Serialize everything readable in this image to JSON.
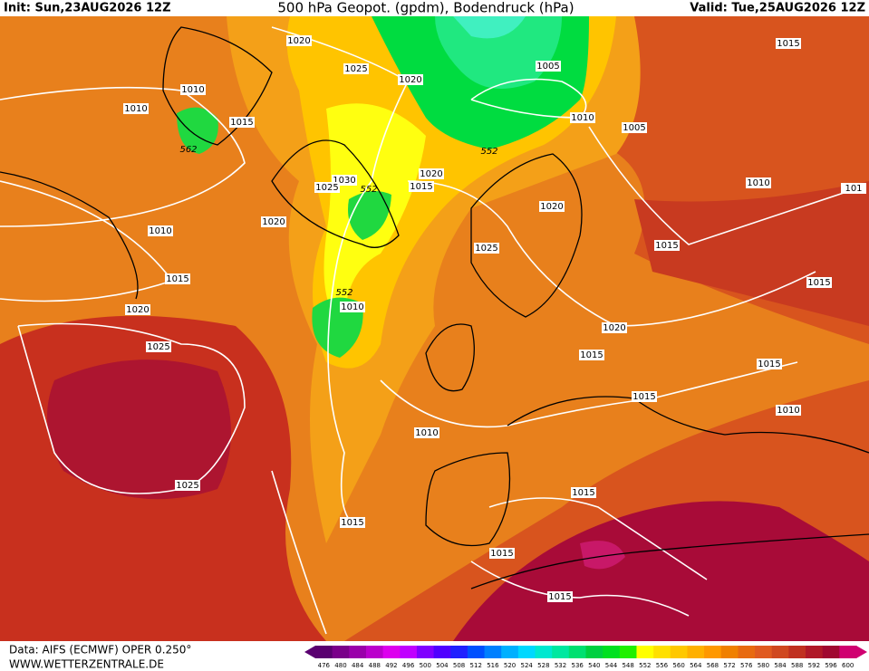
{
  "header": {
    "init": "Init: Sun,23AUG2026 12Z",
    "title": "500 hPa Geopot. (gpdm), Bodendruck (hPa)",
    "valid": "Valid: Tue,25AUG2026 12Z"
  },
  "contour_labels": [
    1020,
    1015,
    1025,
    1005,
    1020,
    1010,
    1010,
    1015,
    1010,
    1005,
    562,
    552,
    1020,
    1030,
    1025,
    552,
    1015,
    1010,
    101,
    1020,
    1010,
    1020,
    1015,
    1025,
    1015,
    1015,
    552,
    1010,
    1020,
    1020,
    1025,
    1015,
    1015,
    1015,
    1010,
    1010,
    1025,
    1015,
    1015,
    1015,
    1015
  ],
  "footer": {
    "source": "Data: AIFS (ECMWF) OPER 0.250°",
    "site": "WWW.WETTERZENTRALE.DE"
  },
  "colorbar": {
    "levels": [
      476,
      480,
      484,
      488,
      492,
      496,
      500,
      504,
      508,
      512,
      516,
      520,
      524,
      528,
      532,
      536,
      540,
      544,
      548,
      552,
      556,
      560,
      564,
      568,
      572,
      576,
      580,
      584,
      588,
      592,
      596,
      600
    ],
    "colors": [
      "#5a0070",
      "#7a008a",
      "#9a00aa",
      "#bb00cc",
      "#dd00ee",
      "#c000ff",
      "#8000ff",
      "#5000ff",
      "#2020ff",
      "#0050ff",
      "#0080ff",
      "#00b0ff",
      "#00d8ff",
      "#00e8d0",
      "#00e8a0",
      "#00e070",
      "#00d040",
      "#00e020",
      "#20f000",
      "#ffff00",
      "#ffe000",
      "#ffc800",
      "#ffb000",
      "#ff9800",
      "#f08000",
      "#e86a10",
      "#e05a20",
      "#d04820",
      "#c03020",
      "#b01828",
      "#a00830",
      "#d00070"
    ]
  }
}
